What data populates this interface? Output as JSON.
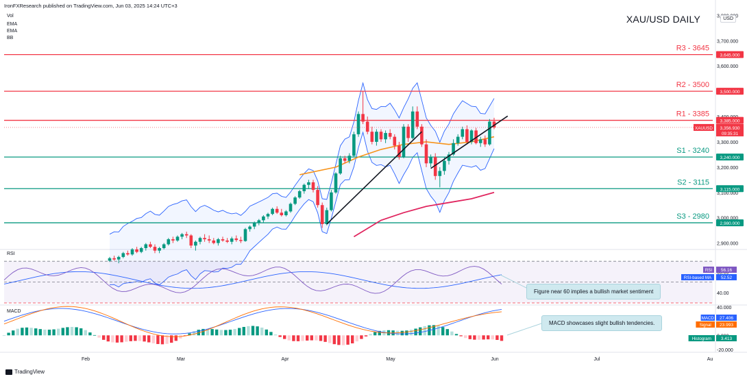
{
  "header": {
    "publisher": "IronFXResearch published on TradingView.com, Jun 03, 2025 14:24 UTC+3",
    "indicators": [
      "Vol",
      "EMA",
      "EMA",
      "BB"
    ],
    "title": "XAU/USD DAILY",
    "currency": "USD",
    "brand": "TradingView"
  },
  "chart_data": {
    "type": "candlestick",
    "title": "XAU/USD DAILY",
    "y_ticks": [
      "3,800.000",
      "3,700.000",
      "3,600.000",
      "3,500.000",
      "3,400.000",
      "3,300.000",
      "3,200.000",
      "3,100.000",
      "3,000.000",
      "2,900.000"
    ],
    "ylim": [
      2880,
      3820
    ],
    "x_ticks": [
      "Feb",
      "Mar",
      "Apr",
      "May",
      "Jun",
      "Jul",
      "Au"
    ],
    "levels": [
      {
        "label": "R3 - 3645",
        "value": 3645,
        "tag": "3,645.000",
        "color": "#f23645"
      },
      {
        "label": "R2 - 3500",
        "value": 3500,
        "tag": "3,500.000",
        "color": "#f23645"
      },
      {
        "label": "R1 - 3385",
        "value": 3385,
        "tag": "3,385.000",
        "color": "#f23645"
      },
      {
        "label": "S1 - 3240",
        "value": 3240,
        "tag": "3,240.000",
        "color": "#089981"
      },
      {
        "label": "S2 - 3115",
        "value": 3115,
        "tag": "3,115.000",
        "color": "#089981"
      },
      {
        "label": "S3 - 2980",
        "value": 2980,
        "tag": "2,980.000",
        "color": "#089981"
      }
    ],
    "last_price": {
      "symbol": "XAUUSD",
      "price": "3,356.930",
      "countdown": "09:35:31",
      "value": 3356.93
    },
    "candles": [
      [
        2830,
        2845,
        2825,
        2840
      ],
      [
        2840,
        2850,
        2830,
        2835
      ],
      [
        2835,
        2850,
        2820,
        2845
      ],
      [
        2845,
        2865,
        2840,
        2860
      ],
      [
        2860,
        2870,
        2850,
        2855
      ],
      [
        2855,
        2880,
        2850,
        2875
      ],
      [
        2875,
        2885,
        2860,
        2865
      ],
      [
        2865,
        2885,
        2860,
        2880
      ],
      [
        2880,
        2900,
        2870,
        2895
      ],
      [
        2895,
        2905,
        2880,
        2885
      ],
      [
        2885,
        2895,
        2860,
        2870
      ],
      [
        2870,
        2885,
        2860,
        2880
      ],
      [
        2880,
        2900,
        2875,
        2895
      ],
      [
        2895,
        2920,
        2890,
        2915
      ],
      [
        2915,
        2925,
        2900,
        2910
      ],
      [
        2910,
        2930,
        2905,
        2925
      ],
      [
        2925,
        2940,
        2915,
        2935
      ],
      [
        2935,
        2945,
        2920,
        2930
      ],
      [
        2930,
        2935,
        2880,
        2890
      ],
      [
        2890,
        2910,
        2870,
        2905
      ],
      [
        2905,
        2925,
        2895,
        2920
      ],
      [
        2920,
        2935,
        2905,
        2915
      ],
      [
        2915,
        2930,
        2900,
        2910
      ],
      [
        2910,
        2920,
        2895,
        2900
      ],
      [
        2900,
        2920,
        2890,
        2915
      ],
      [
        2915,
        2925,
        2905,
        2910
      ],
      [
        2910,
        2920,
        2900,
        2905
      ],
      [
        2905,
        2925,
        2895,
        2918
      ],
      [
        2918,
        2930,
        2905,
        2912
      ],
      [
        2912,
        2925,
        2900,
        2908
      ],
      [
        2908,
        2960,
        2905,
        2955
      ],
      [
        2955,
        2970,
        2945,
        2965
      ],
      [
        2965,
        2985,
        2955,
        2980
      ],
      [
        2980,
        2995,
        2970,
        2990
      ],
      [
        2990,
        3010,
        2980,
        3005
      ],
      [
        3005,
        3020,
        2995,
        3015
      ],
      [
        3015,
        3040,
        3010,
        3035
      ],
      [
        3035,
        3045,
        3015,
        3020
      ],
      [
        3020,
        3035,
        3005,
        3010
      ],
      [
        3010,
        3030,
        3005,
        3025
      ],
      [
        3025,
        3060,
        3020,
        3055
      ],
      [
        3055,
        3085,
        3050,
        3080
      ],
      [
        3080,
        3110,
        3075,
        3105
      ],
      [
        3105,
        3135,
        3095,
        3130
      ],
      [
        3130,
        3150,
        3115,
        3140
      ],
      [
        3140,
        3150,
        3100,
        3110
      ],
      [
        3110,
        3125,
        3040,
        3050
      ],
      [
        3050,
        3060,
        2960,
        2975
      ],
      [
        2975,
        3040,
        2970,
        3030
      ],
      [
        3030,
        3110,
        3025,
        3100
      ],
      [
        3100,
        3180,
        3095,
        3175
      ],
      [
        3175,
        3245,
        3170,
        3235
      ],
      [
        3235,
        3245,
        3215,
        3225
      ],
      [
        3225,
        3255,
        3215,
        3245
      ],
      [
        3245,
        3340,
        3240,
        3330
      ],
      [
        3330,
        3420,
        3320,
        3410
      ],
      [
        3410,
        3500,
        3370,
        3380
      ],
      [
        3380,
        3400,
        3330,
        3340
      ],
      [
        3340,
        3360,
        3290,
        3300
      ],
      [
        3300,
        3350,
        3285,
        3340
      ],
      [
        3340,
        3350,
        3300,
        3310
      ],
      [
        3310,
        3345,
        3295,
        3335
      ],
      [
        3335,
        3350,
        3310,
        3320
      ],
      [
        3320,
        3330,
        3270,
        3285
      ],
      [
        3285,
        3300,
        3230,
        3240
      ],
      [
        3240,
        3370,
        3235,
        3360
      ],
      [
        3360,
        3370,
        3300,
        3315
      ],
      [
        3315,
        3440,
        3310,
        3420
      ],
      [
        3420,
        3440,
        3350,
        3360
      ],
      [
        3360,
        3370,
        3280,
        3290
      ],
      [
        3290,
        3310,
        3200,
        3215
      ],
      [
        3215,
        3250,
        3200,
        3240
      ],
      [
        3240,
        3255,
        3150,
        3165
      ],
      [
        3165,
        3200,
        3120,
        3185
      ],
      [
        3185,
        3240,
        3170,
        3225
      ],
      [
        3225,
        3260,
        3210,
        3250
      ],
      [
        3250,
        3310,
        3245,
        3295
      ],
      [
        3295,
        3330,
        3285,
        3320
      ],
      [
        3320,
        3360,
        3310,
        3350
      ],
      [
        3350,
        3365,
        3290,
        3300
      ],
      [
        3300,
        3350,
        3290,
        3345
      ],
      [
        3345,
        3355,
        3290,
        3295
      ],
      [
        3295,
        3320,
        3280,
        3310
      ],
      [
        3310,
        3325,
        3280,
        3290
      ],
      [
        3290,
        3390,
        3285,
        3380
      ],
      [
        3380,
        3395,
        3350,
        3357
      ]
    ],
    "ema_fast": [
      [
        42,
        3170
      ],
      [
        50,
        3200
      ],
      [
        55,
        3240
      ],
      [
        60,
        3270
      ],
      [
        65,
        3290
      ],
      [
        70,
        3300
      ],
      [
        75,
        3290
      ],
      [
        80,
        3300
      ],
      [
        85,
        3320
      ]
    ],
    "ema_slow": [
      [
        54,
        2925
      ],
      [
        60,
        2990
      ],
      [
        65,
        3020
      ],
      [
        70,
        3045
      ],
      [
        75,
        3060
      ],
      [
        80,
        3075
      ],
      [
        85,
        3100
      ]
    ],
    "trendlines": [
      [
        [
          48,
          2975
        ],
        [
          69,
          3340
        ]
      ],
      [
        [
          71,
          3195
        ],
        [
          88,
          3402
        ]
      ]
    ],
    "rsi": {
      "label": "RSI",
      "value": "56.16",
      "ma_label": "RSI-based MA",
      "ma_value": "52.52",
      "y_ticks": [
        "60.00",
        "40.00"
      ],
      "annotation": "Figure near 60 implies a bullish market sentiment"
    },
    "macd": {
      "label": "MACD",
      "value": "27.406",
      "signal_label": "Signal",
      "signal_value": "23.993",
      "hist_label": "Histogram",
      "hist_value": "3.413",
      "y_ticks": [
        "40.000",
        "0.000",
        "-20.000"
      ],
      "annotation": "MACD showcases slight bullish tendencies."
    }
  },
  "colors": {
    "up": "#089981",
    "down": "#f23645",
    "ema_fast": "#f7931a",
    "ema_slow": "#e0245e",
    "bb": "#2962ff",
    "rsi": "#7e57c2"
  }
}
